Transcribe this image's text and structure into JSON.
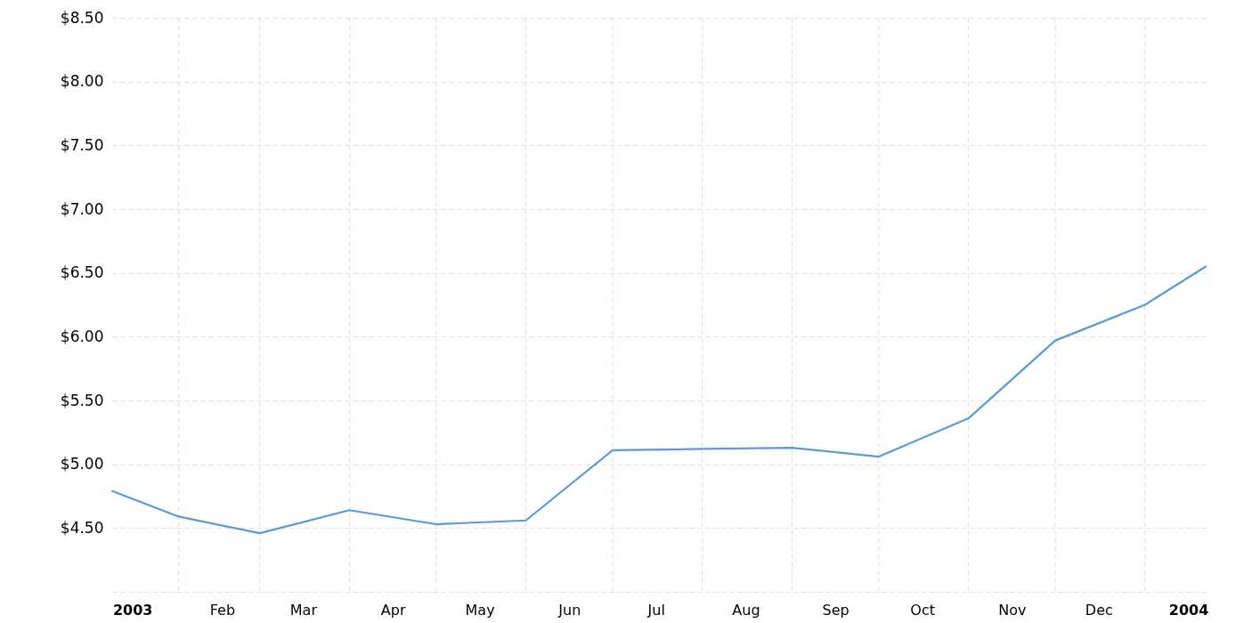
{
  "chart_data": {
    "type": "line",
    "x": [
      "2003-01-09",
      "2003-02-01",
      "2003-03-01",
      "2003-04-01",
      "2003-05-01",
      "2003-06-01",
      "2003-07-01",
      "2003-08-01",
      "2003-09-01",
      "2003-10-01",
      "2003-11-01",
      "2003-12-01",
      "2004-01-01",
      "2004-01-22"
    ],
    "series": [
      {
        "color": "#5b9bd5",
        "values": [
          4.79,
          4.59,
          4.46,
          4.64,
          4.53,
          4.56,
          5.11,
          5.12,
          5.13,
          5.06,
          5.36,
          5.97,
          6.25,
          6.55
        ]
      }
    ],
    "xlim": [
      "2003-01-09",
      "2004-01-22"
    ],
    "xticks": [
      {
        "value": "2003-01-16",
        "label": "2003"
      },
      {
        "value": "2003-02-01",
        "label": null
      },
      {
        "value": "2003-02-16",
        "label": "Feb"
      },
      {
        "value": "2003-03-01",
        "label": null
      },
      {
        "value": "2003-03-16",
        "label": "Mar"
      },
      {
        "value": "2003-04-01",
        "label": null
      },
      {
        "value": "2003-04-16",
        "label": "Apr"
      },
      {
        "value": "2003-05-01",
        "label": null
      },
      {
        "value": "2003-05-16",
        "label": "May"
      },
      {
        "value": "2003-06-01",
        "label": null
      },
      {
        "value": "2003-06-16",
        "label": "Jun"
      },
      {
        "value": "2003-07-01",
        "label": null
      },
      {
        "value": "2003-07-16",
        "label": "Jul"
      },
      {
        "value": "2003-08-01",
        "label": null
      },
      {
        "value": "2003-08-16",
        "label": "Aug"
      },
      {
        "value": "2003-09-01",
        "label": null
      },
      {
        "value": "2003-09-16",
        "label": "Sep"
      },
      {
        "value": "2003-10-01",
        "label": null
      },
      {
        "value": "2003-10-16",
        "label": "Oct"
      },
      {
        "value": "2003-11-01",
        "label": null
      },
      {
        "value": "2003-11-16",
        "label": "Nov"
      },
      {
        "value": "2003-12-01",
        "label": null
      },
      {
        "value": "2003-12-16",
        "label": "Dec"
      },
      {
        "value": "2004-01-01",
        "label": null
      },
      {
        "value": "2004-01-16",
        "label": "2004"
      }
    ],
    "ylim": [
      4.0,
      8.5
    ],
    "yticks": [
      {
        "value": 4.0,
        "label": null
      },
      {
        "value": 4.5,
        "label": "$4.50"
      },
      {
        "value": 5.0,
        "label": "$5.00"
      },
      {
        "value": 5.5,
        "label": "$5.50"
      },
      {
        "value": 6.0,
        "label": "$6.00"
      },
      {
        "value": 6.5,
        "label": "$6.50"
      },
      {
        "value": 7.0,
        "label": "$7.00"
      },
      {
        "value": 7.5,
        "label": "$7.50"
      },
      {
        "value": 8.0,
        "label": "$8.00"
      },
      {
        "value": 8.5,
        "label": "$8.50"
      }
    ],
    "grid": true
  }
}
